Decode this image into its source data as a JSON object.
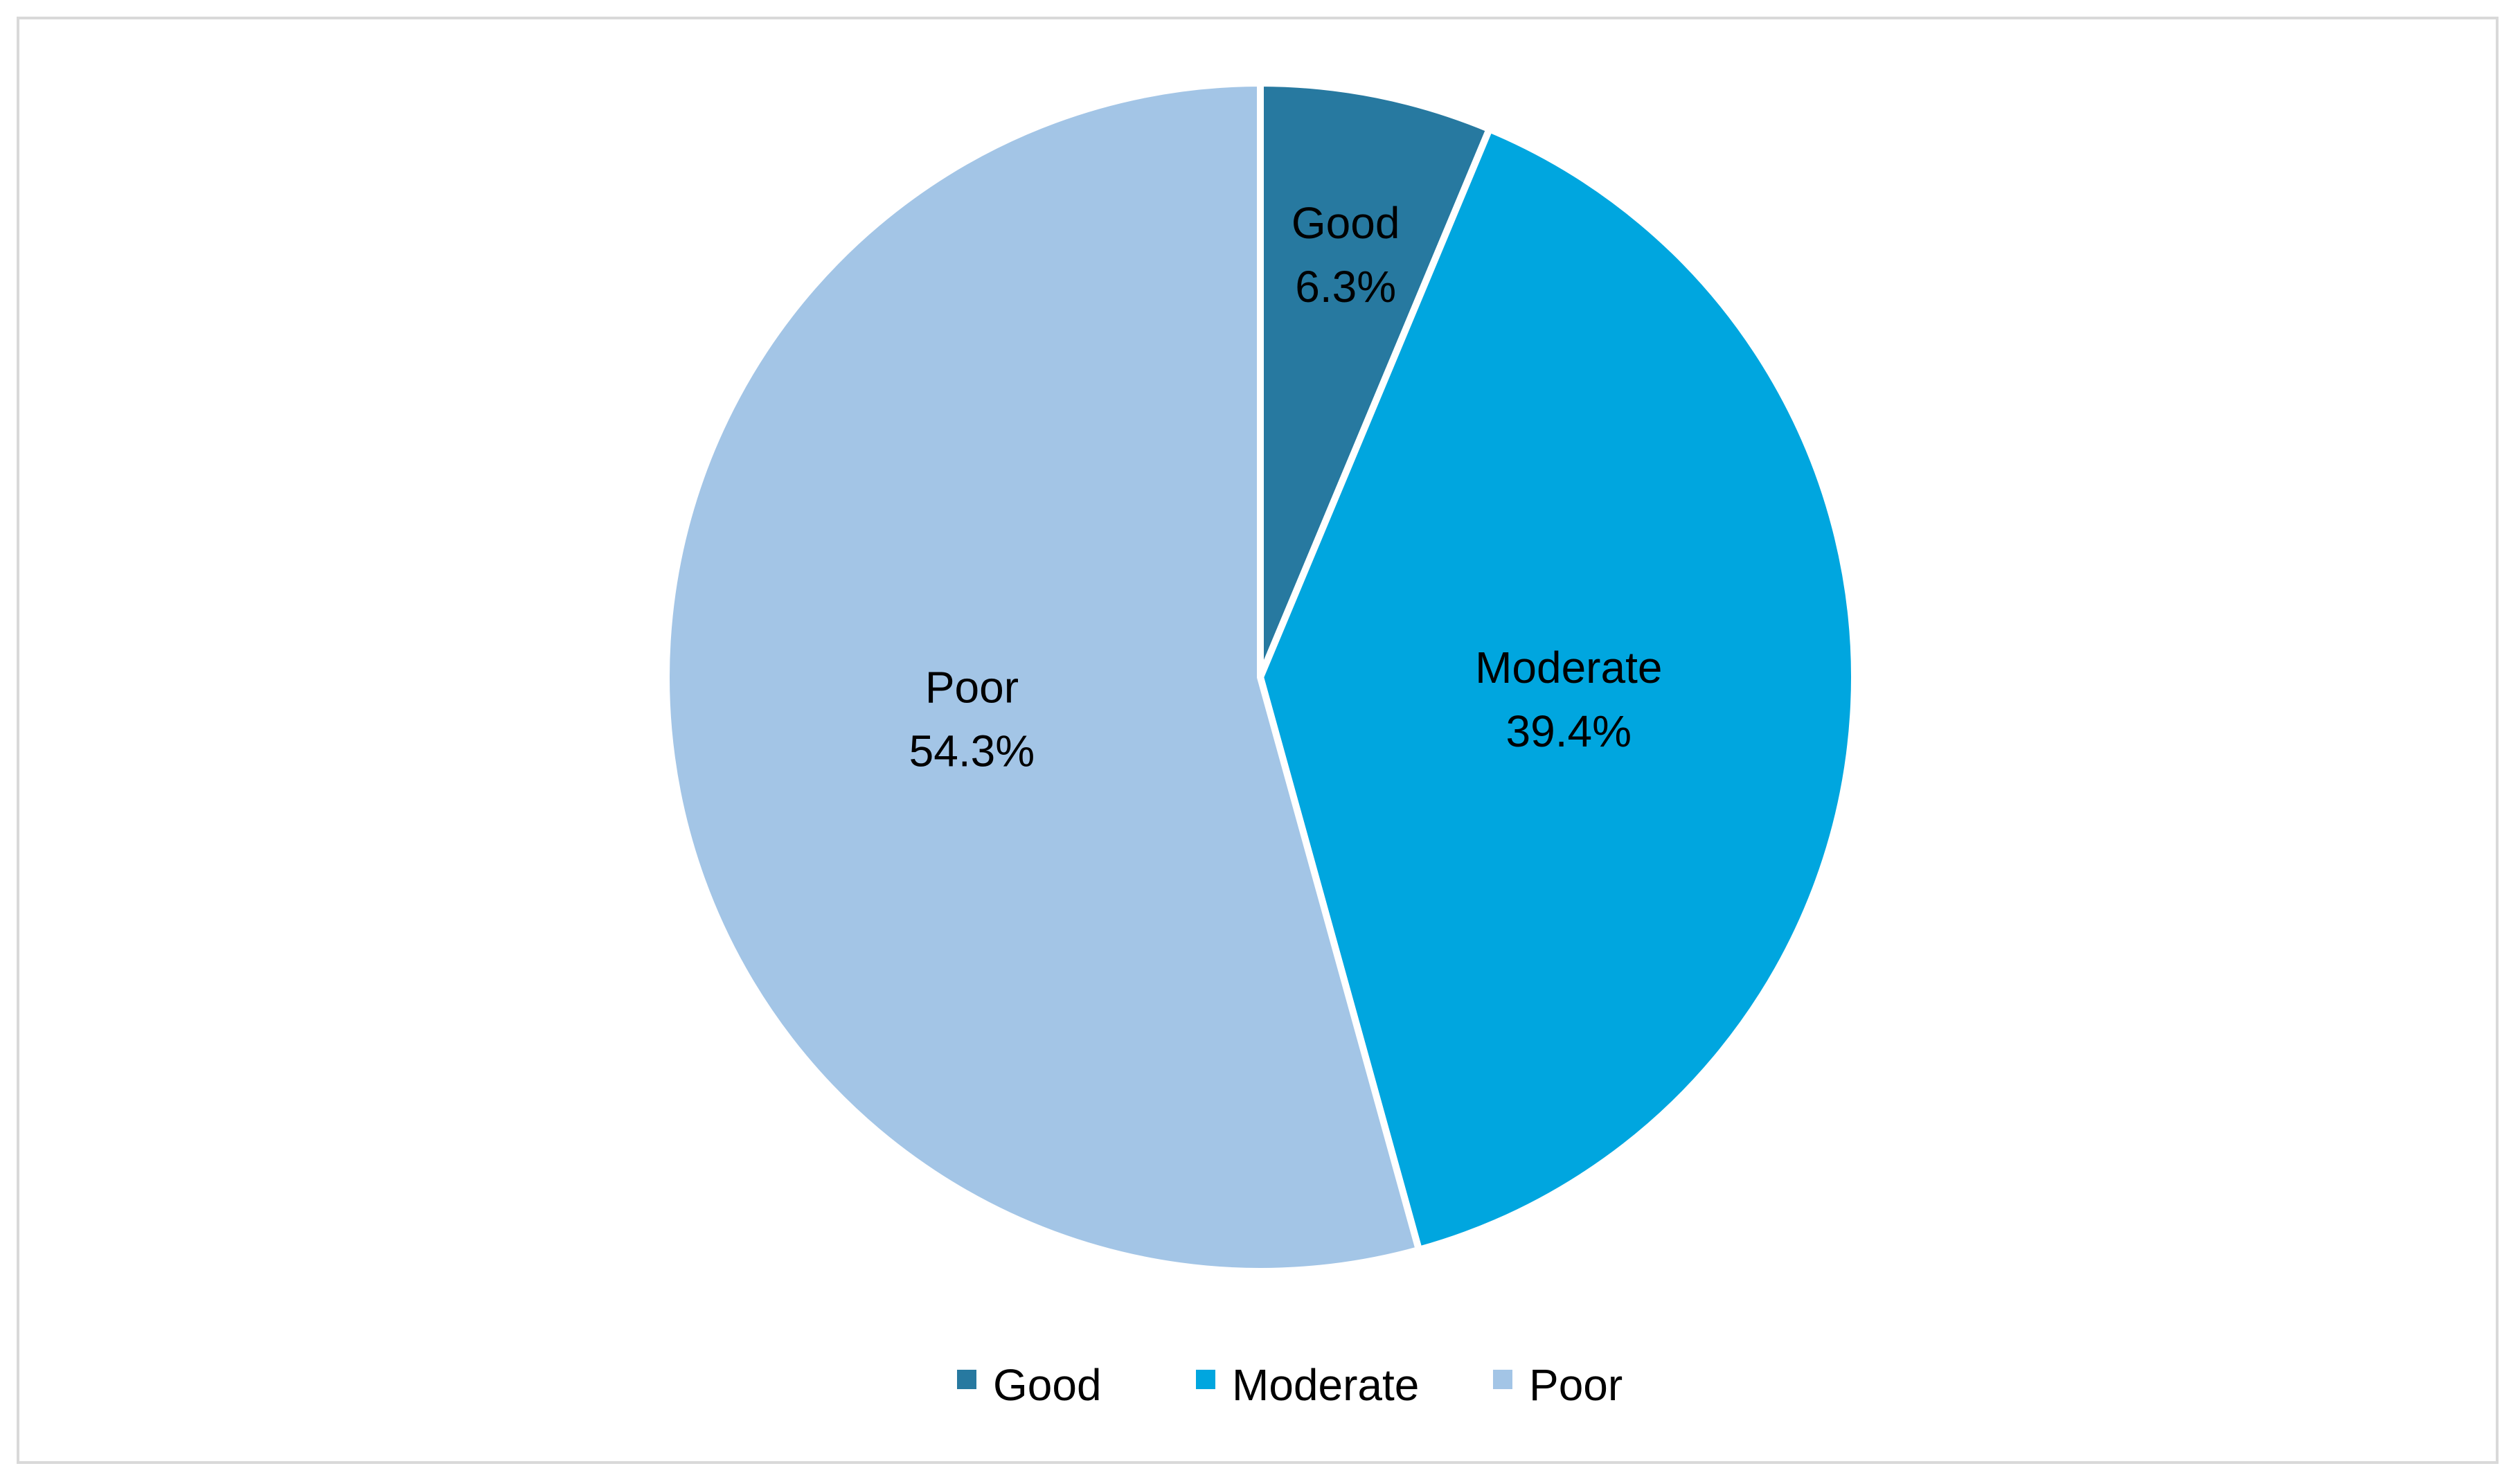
{
  "chart_data": {
    "type": "pie",
    "categories": [
      "Good",
      "Moderate",
      "Poor"
    ],
    "values": [
      6.3,
      39.4,
      54.3
    ],
    "value_suffix": "%",
    "colors": [
      "#2779a0",
      "#00a6df",
      "#a3c5e6"
    ],
    "start_angle_deg": 0,
    "direction": "clockwise",
    "legend": "bottom",
    "title": ""
  }
}
